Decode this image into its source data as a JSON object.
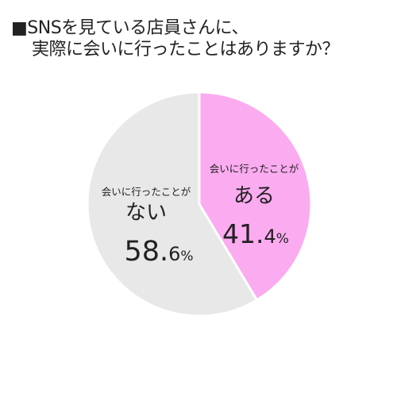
{
  "title": {
    "line1": "■SNSを見ている店員さんに、",
    "line2": "実際に会いに行ったことはありますか？"
  },
  "chart_data": {
    "type": "pie",
    "categories": [
      "会いに行ったことがある",
      "会いに行ったことがない"
    ],
    "values": [
      41.4,
      58.6
    ],
    "unit": "%",
    "colors": [
      "#fbabf0",
      "#e8e8e8"
    ],
    "start_angle_deg": 0,
    "direction": "clockwise",
    "slices": [
      {
        "label_small": "会いに行ったことが",
        "label_big": "ある",
        "value_main": "41.",
        "value_decimal": "4",
        "value_unit": "%"
      },
      {
        "label_small": "会いに行ったことが",
        "label_big": "ない",
        "value_main": "58.",
        "value_decimal": "6",
        "value_unit": "%"
      }
    ]
  }
}
